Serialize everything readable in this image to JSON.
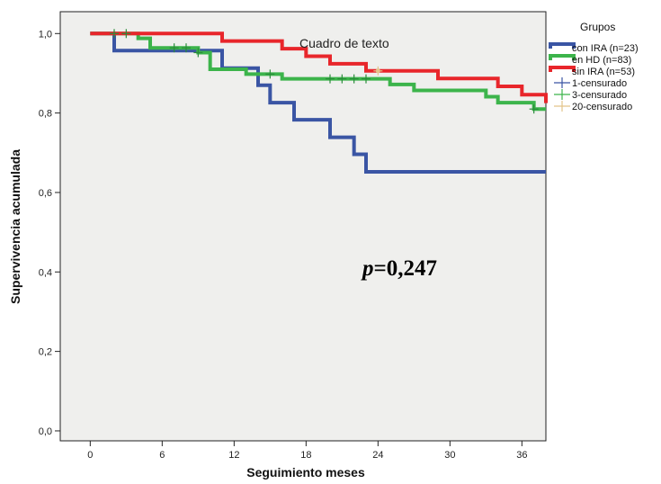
{
  "chart_data": {
    "type": "line",
    "step": true,
    "xlabel": "Seguimiento meses",
    "ylabel": "Supervivencia acumulada",
    "xlim": [
      -2.5,
      38
    ],
    "ylim": [
      -0.025,
      1.055
    ],
    "x_ticks": [
      0,
      6,
      12,
      18,
      24,
      30,
      36
    ],
    "y_ticks": [
      0.0,
      0.2,
      0.4,
      0.6,
      0.8,
      1.0
    ],
    "x_tick_labels": [
      "0",
      "6",
      "12",
      "18",
      "24",
      "30",
      "36"
    ],
    "y_tick_labels": [
      "0,0",
      "0,2",
      "0,4",
      "0,6",
      "0,8",
      "1,0"
    ],
    "grid": false,
    "legend_title": "Grupos",
    "legend_position": "right",
    "series": [
      {
        "name": "con IRA (n=23)",
        "color": "#3a55a4",
        "x": [
          0,
          2,
          11,
          14,
          15,
          17,
          20,
          22,
          23,
          38
        ],
        "y": [
          1.0,
          0.957,
          0.913,
          0.87,
          0.826,
          0.783,
          0.739,
          0.696,
          0.652,
          0.652
        ],
        "censored_x": []
      },
      {
        "name": "en HD (n=83)",
        "color": "#3cb44b",
        "x": [
          0,
          2,
          4,
          5,
          9,
          10,
          13,
          16,
          25,
          27,
          33,
          34,
          37,
          38
        ],
        "y": [
          1.0,
          1.0,
          0.988,
          0.964,
          0.952,
          0.91,
          0.898,
          0.886,
          0.872,
          0.857,
          0.841,
          0.826,
          0.81,
          0.81
        ],
        "censored_x": [
          2,
          3,
          7,
          8,
          9,
          15,
          20,
          21,
          22,
          23,
          37
        ],
        "censored_y": [
          1.0,
          1.0,
          0.964,
          0.964,
          0.952,
          0.898,
          0.886,
          0.886,
          0.886,
          0.886,
          0.81
        ]
      },
      {
        "name": "sin IRA (n=53)",
        "color": "#e8262b",
        "x": [
          0,
          11,
          16,
          18,
          20,
          23,
          29,
          34,
          36,
          38
        ],
        "y": [
          1.0,
          0.981,
          0.962,
          0.943,
          0.924,
          0.906,
          0.887,
          0.867,
          0.846,
          0.825
        ],
        "censored_x": [
          24
        ],
        "censored_y": [
          0.906
        ]
      }
    ],
    "censor_legend": [
      {
        "name": "1-censurado",
        "color": "#3a55a4"
      },
      {
        "name": "3-censurado",
        "color": "#3cb44b"
      },
      {
        "name": "20-censurado",
        "color": "#e3c48a"
      }
    ],
    "annotations": {
      "text_box": "Cuadro de texto",
      "p_italic": "p",
      "p_value": "=0,247"
    }
  }
}
